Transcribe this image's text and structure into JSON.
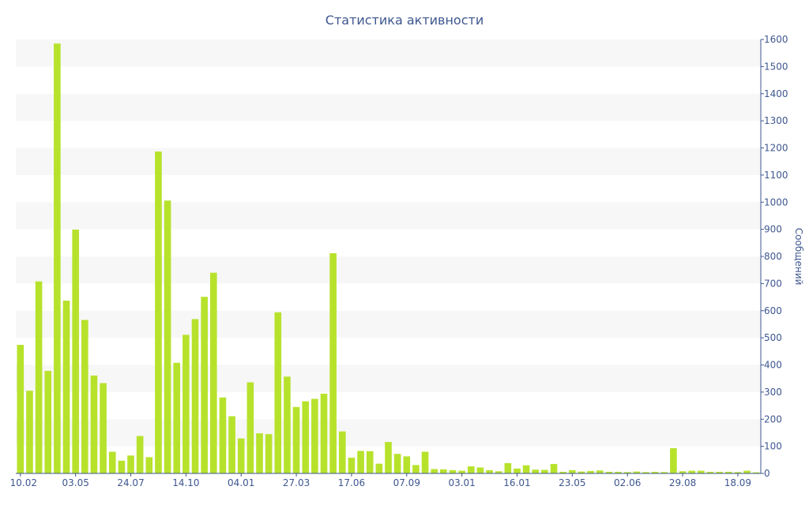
{
  "colors": {
    "bar": "#b7e22c",
    "band": "#f7f7f7",
    "axis": "#3e578f",
    "text": "#3e578f"
  },
  "chart_data": {
    "type": "bar",
    "title": "Статистика активности",
    "xlabel": "",
    "ylabel": "Сообщений",
    "ylim": [
      0,
      1600
    ],
    "yticks": [
      0,
      100,
      200,
      300,
      400,
      500,
      600,
      700,
      800,
      900,
      1000,
      1100,
      1200,
      1300,
      1400,
      1500,
      1600
    ],
    "grid": "alternating-bands",
    "legend": "none",
    "xtick_labels": [
      "10.02",
      "03.05",
      "24.07",
      "14.10",
      "04.01",
      "27.03",
      "17.06",
      "07.09",
      "03.01",
      "16.01",
      "23.05",
      "02.06",
      "29.08",
      "18.09"
    ],
    "xtick_positions": [
      0,
      6,
      12,
      18,
      24,
      30,
      36,
      42,
      48,
      54,
      60,
      66,
      72,
      78
    ],
    "values": [
      474,
      305,
      708,
      378,
      1585,
      637,
      899,
      566,
      361,
      333,
      80,
      47,
      66,
      138,
      60,
      1187,
      1006,
      408,
      511,
      569,
      651,
      740,
      280,
      211,
      129,
      336,
      148,
      145,
      594,
      357,
      245,
      266,
      275,
      294,
      812,
      155,
      58,
      83,
      82,
      36,
      116,
      72,
      63,
      31,
      80,
      16,
      15,
      12,
      10,
      26,
      22,
      12,
      8,
      38,
      18,
      30,
      14,
      13,
      35,
      6,
      12,
      7,
      9,
      11,
      6,
      6,
      5,
      7,
      5,
      6,
      5,
      93,
      8,
      10,
      10,
      6,
      6,
      6,
      5,
      10,
      4
    ]
  }
}
